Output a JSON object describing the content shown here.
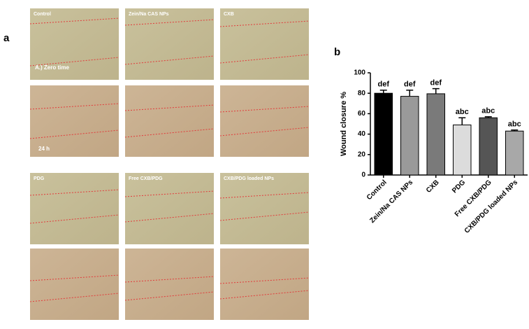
{
  "panel_labels": [
    "a",
    "b"
  ],
  "panels": {
    "titles": [
      "Control",
      "Zein/Na CAS NPs",
      "CXB",
      "PDG",
      "Free CXB/PDG",
      "CXB/PDG loaded NPs"
    ],
    "row_labels": [
      "A.) Zero time",
      "24 h"
    ]
  },
  "chart_data": {
    "type": "bar",
    "ylabel": "Wound closure %",
    "categories": [
      "Control",
      "Zein/Na CAS NPs",
      "CXB",
      "PDG",
      "Free CXB/PDG",
      "CXB/PDG loaded NPs"
    ],
    "values": [
      80,
      77,
      79.5,
      49,
      56,
      43
    ],
    "errors": [
      3,
      6,
      5,
      7,
      1,
      1
    ],
    "annotations": [
      "def",
      "def",
      "def",
      "abc",
      "abc",
      "abc"
    ],
    "colors": [
      "#000000",
      "#9a9a9a",
      "#7a7a7a",
      "#dcdcdc",
      "#555555",
      "#a8a8a8"
    ],
    "ylim": [
      0,
      100
    ],
    "yticks": [
      0,
      20,
      40,
      60,
      80,
      100
    ]
  }
}
